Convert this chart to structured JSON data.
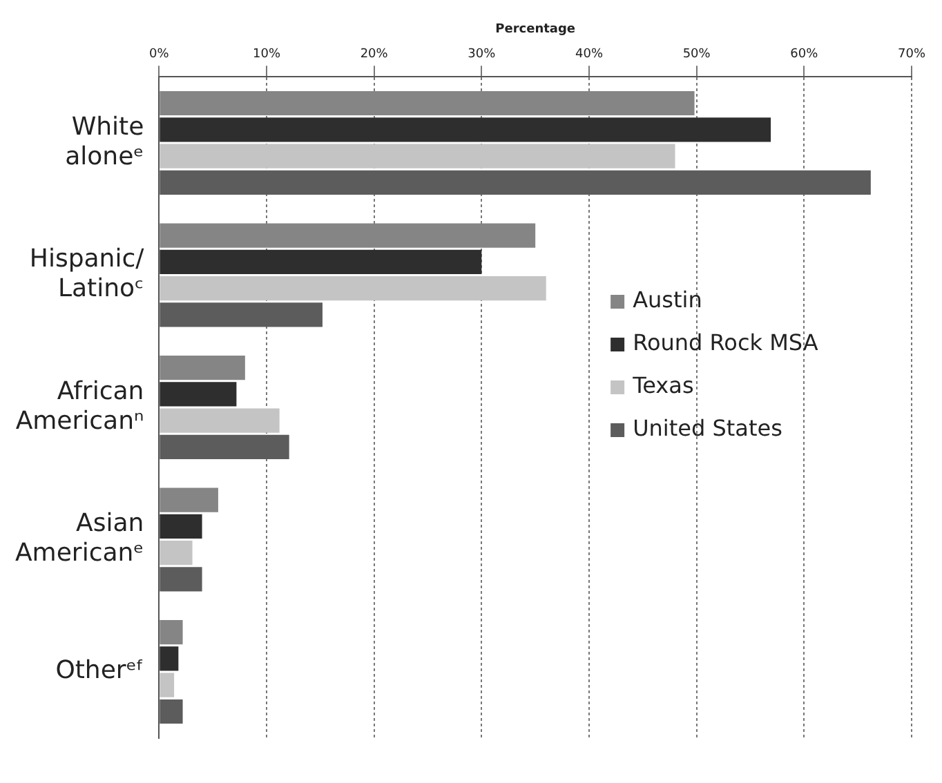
{
  "chart_data": {
    "type": "bar",
    "orientation": "horizontal",
    "xlabel": "Percentage",
    "categories": [
      "White aloneᵉ",
      "Hispanic/Latinoᶜ",
      "African Americanⁿ",
      "Asian Americanᵉ",
      "Otherᵉᶠ"
    ],
    "series": [
      {
        "name": "Austin",
        "color": "#858585",
        "values": [
          49.8,
          35.0,
          8.0,
          5.5,
          2.2
        ]
      },
      {
        "name": "Round Rock MSA",
        "color": "#2e2e2e",
        "values": [
          56.9,
          30.0,
          7.2,
          4.0,
          1.8
        ]
      },
      {
        "name": "Texas",
        "color": "#c4c4c4",
        "values": [
          48.0,
          36.0,
          11.2,
          3.1,
          1.4
        ]
      },
      {
        "name": "United States",
        "color": "#5c5c5c",
        "values": [
          66.2,
          15.2,
          12.1,
          4.0,
          2.2
        ]
      }
    ],
    "xlim": [
      0,
      70
    ],
    "xticks": [
      {
        "value": 0,
        "label": "0%"
      },
      {
        "value": 10,
        "label": "10%"
      },
      {
        "value": 20,
        "label": "20%"
      },
      {
        "value": 30,
        "label": "30%"
      },
      {
        "value": 40,
        "label": "40%"
      },
      {
        "value": 50,
        "label": "50%"
      },
      {
        "value": 60,
        "label": "60%"
      },
      {
        "value": 70,
        "label": "70%"
      }
    ],
    "grid": "x",
    "legend": "right"
  }
}
